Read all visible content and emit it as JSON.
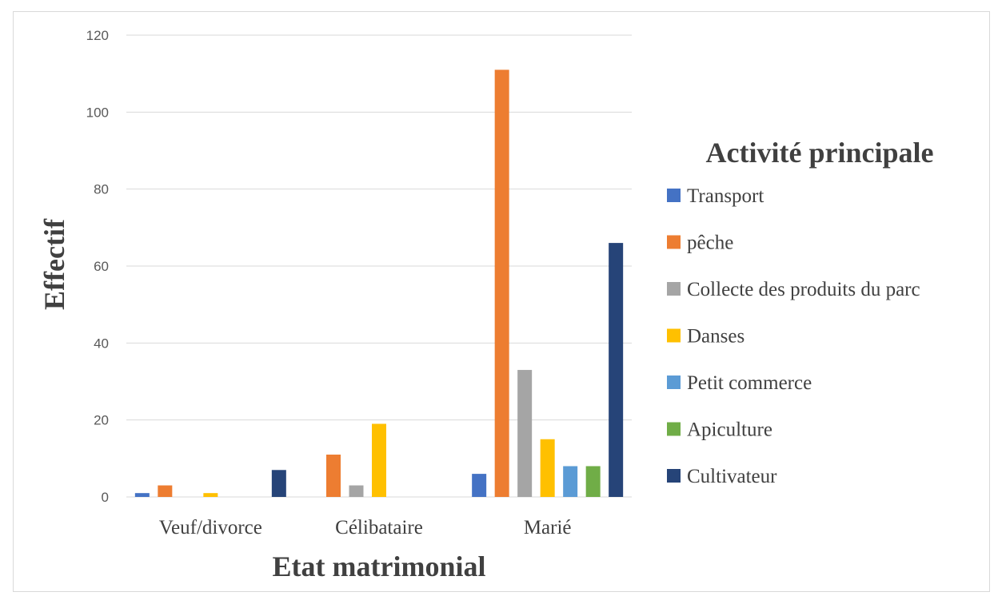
{
  "chart_data": {
    "type": "bar",
    "xlabel": "Etat matrimonial",
    "ylabel": "Effectif",
    "ylim": [
      0,
      120
    ],
    "yticks": [
      0,
      20,
      40,
      60,
      80,
      100,
      120
    ],
    "grid": true,
    "legend_title": "Activité principale",
    "legend_position": "right",
    "categories": [
      "Veuf/divorce",
      "Célibataire",
      "Marié"
    ],
    "series": [
      {
        "name": "Transport",
        "color": "#4472C4",
        "values": [
          1,
          0,
          6
        ]
      },
      {
        "name": "pêche",
        "color": "#ED7D31",
        "values": [
          3,
          11,
          111
        ]
      },
      {
        "name": "Collecte des produits du parc",
        "color": "#A5A5A5",
        "values": [
          0,
          3,
          33
        ]
      },
      {
        "name": "Danses",
        "color": "#FFC000",
        "values": [
          1,
          19,
          15
        ]
      },
      {
        "name": "Petit commerce",
        "color": "#5B9BD5",
        "values": [
          0,
          0,
          8
        ]
      },
      {
        "name": "Apiculture",
        "color": "#70AD47",
        "values": [
          0,
          0,
          8
        ]
      },
      {
        "name": "Cultivateur",
        "color": "#264478",
        "values": [
          7,
          0,
          66
        ]
      }
    ]
  }
}
